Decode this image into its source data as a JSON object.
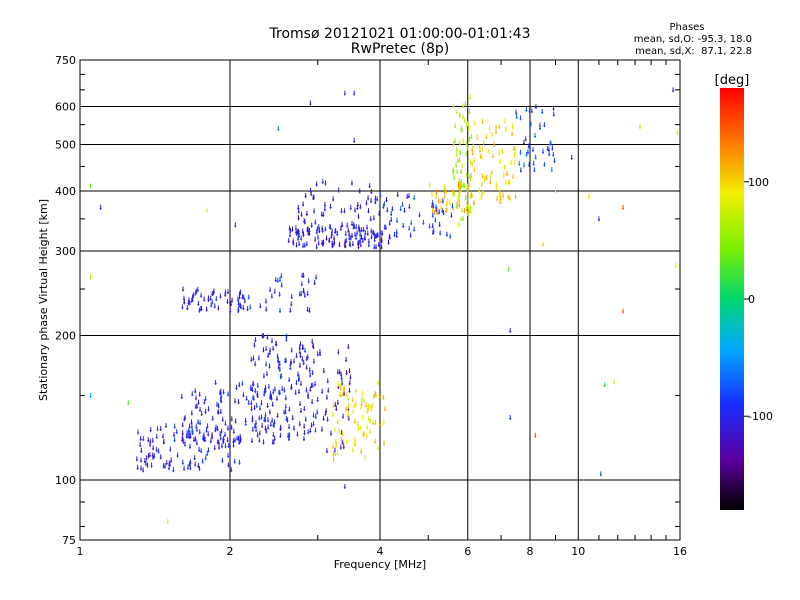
{
  "chart_data": {
    "type": "scatter",
    "title": "Tromsø 20121021 01:00:00-01:01:43",
    "subtitle": "RwPretec (8p)",
    "xlabel": "Frequency [MHz]",
    "ylabel": "Stationary phase Virtual Height [km]",
    "x_scale": "log",
    "y_scale": "log",
    "xlim": [
      1,
      16
    ],
    "ylim": [
      75,
      750
    ],
    "x_ticks": [
      1,
      2,
      4,
      6,
      8,
      10,
      16
    ],
    "x_tick_labels": [
      "1",
      "2",
      "4",
      "6",
      "8",
      "10",
      "16"
    ],
    "y_ticks": [
      75,
      100,
      200,
      300,
      400,
      500,
      600,
      750
    ],
    "y_tick_labels": [
      "75",
      "100",
      "200",
      "300",
      "400",
      "500",
      "600",
      "750"
    ],
    "grid": true,
    "phase_info": {
      "title": "Phases",
      "line_o": "mean, sd,O: -95.3, 18.0",
      "line_x": "mean, sd,X:  87.1, 22.8"
    },
    "colorbar": {
      "label": "[deg]",
      "range": [
        -180,
        180
      ],
      "ticks": [
        100,
        0,
        -100
      ],
      "tick_labels": [
        "100",
        "0",
        "-100"
      ]
    },
    "clusters": [
      {
        "x": [
          1.3,
          2.1
        ],
        "y": [
          105,
          130
        ],
        "phase": -100,
        "n": 120
      },
      {
        "x": [
          1.6,
          2.5
        ],
        "y": [
          120,
          160
        ],
        "phase": -95,
        "n": 90
      },
      {
        "x": [
          2.2,
          3.0
        ],
        "y": [
          120,
          200
        ],
        "phase": -100,
        "n": 160
      },
      {
        "x": [
          3.0,
          3.5
        ],
        "y": [
          115,
          190
        ],
        "phase": -120,
        "n": 40
      },
      {
        "x": [
          3.2,
          4.1
        ],
        "y": [
          110,
          160
        ],
        "phase": 95,
        "n": 80
      },
      {
        "x": [
          1.6,
          2.2
        ],
        "y": [
          225,
          250
        ],
        "phase": -100,
        "n": 60
      },
      {
        "x": [
          2.3,
          3.0
        ],
        "y": [
          220,
          270
        ],
        "phase": -95,
        "n": 30
      },
      {
        "x": [
          2.6,
          4.2
        ],
        "y": [
          305,
          340
        ],
        "phase": -105,
        "n": 130
      },
      {
        "x": [
          2.7,
          4.0
        ],
        "y": [
          340,
          420
        ],
        "phase": -110,
        "n": 50
      },
      {
        "x": [
          4.0,
          5.6
        ],
        "y": [
          320,
          400
        ],
        "phase": -90,
        "n": 50
      },
      {
        "x": [
          5.0,
          6.2
        ],
        "y": [
          360,
          420
        ],
        "phase": 110,
        "n": 40
      },
      {
        "x": [
          5.6,
          6.1
        ],
        "y": [
          340,
          640
        ],
        "phase": 60,
        "n": 70
      },
      {
        "x": [
          6.1,
          7.5
        ],
        "y": [
          380,
          560
        ],
        "phase": 100,
        "n": 70
      },
      {
        "x": [
          7.5,
          9.0
        ],
        "y": [
          440,
          600
        ],
        "phase": -80,
        "n": 40
      }
    ],
    "sparse_points": [
      {
        "x": 1.05,
        "y": 410,
        "phase": 40
      },
      {
        "x": 1.1,
        "y": 370,
        "phase": -110
      },
      {
        "x": 1.05,
        "y": 265,
        "phase": 60
      },
      {
        "x": 1.05,
        "y": 150,
        "phase": -30
      },
      {
        "x": 1.25,
        "y": 145,
        "phase": 30
      },
      {
        "x": 1.8,
        "y": 365,
        "phase": 90
      },
      {
        "x": 2.05,
        "y": 340,
        "phase": -100
      },
      {
        "x": 2.5,
        "y": 540,
        "phase": -60
      },
      {
        "x": 2.9,
        "y": 610,
        "phase": -120
      },
      {
        "x": 3.4,
        "y": 640,
        "phase": -100
      },
      {
        "x": 3.55,
        "y": 640,
        "phase": -100
      },
      {
        "x": 3.55,
        "y": 510,
        "phase": -110
      },
      {
        "x": 1.5,
        "y": 82,
        "phase": 80
      },
      {
        "x": 3.4,
        "y": 97,
        "phase": -100
      },
      {
        "x": 7.3,
        "y": 205,
        "phase": -100
      },
      {
        "x": 7.25,
        "y": 275,
        "phase": 30
      },
      {
        "x": 7.3,
        "y": 135,
        "phase": -90
      },
      {
        "x": 8.2,
        "y": 124,
        "phase": 150
      },
      {
        "x": 8.5,
        "y": 310,
        "phase": 100
      },
      {
        "x": 9.0,
        "y": 400,
        "phase": 90
      },
      {
        "x": 9.7,
        "y": 470,
        "phase": -100
      },
      {
        "x": 10.5,
        "y": 390,
        "phase": 100
      },
      {
        "x": 11.0,
        "y": 350,
        "phase": -110
      },
      {
        "x": 11.1,
        "y": 103,
        "phase": -80
      },
      {
        "x": 11.3,
        "y": 158,
        "phase": 10
      },
      {
        "x": 11.8,
        "y": 160,
        "phase": 80
      },
      {
        "x": 12.3,
        "y": 370,
        "phase": 150
      },
      {
        "x": 12.3,
        "y": 225,
        "phase": 150
      },
      {
        "x": 13.3,
        "y": 545,
        "phase": 60
      },
      {
        "x": 15.5,
        "y": 650,
        "phase": -110
      },
      {
        "x": 15.8,
        "y": 530,
        "phase": 70
      },
      {
        "x": 15.7,
        "y": 280,
        "phase": 80
      }
    ]
  }
}
